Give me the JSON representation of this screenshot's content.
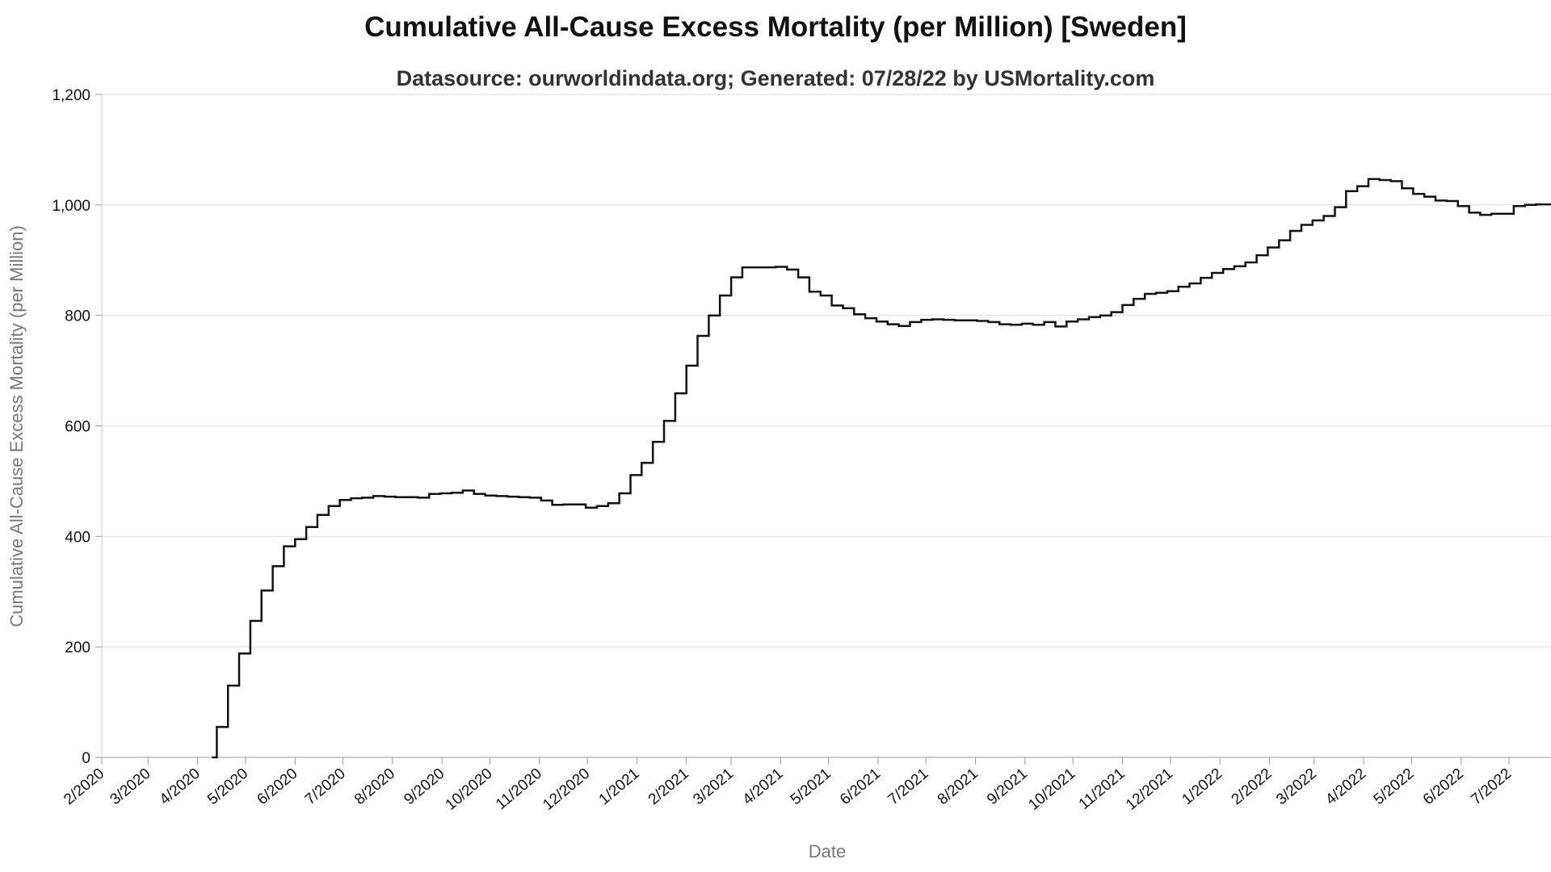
{
  "chart_data": {
    "type": "line",
    "title": "Cumulative All-Cause Excess Mortality (per Million) [Sweden]",
    "subtitle": "Datasource: ourworldindata.org; Generated: 07/28/22 by USMortality.com",
    "xlabel": "Date",
    "ylabel": "Cumulative All-Cause Excess Mortality (per Million)",
    "ylim": [
      0,
      1200
    ],
    "y_ticks": [
      {
        "value": 0,
        "label": "0"
      },
      {
        "value": 200,
        "label": "200"
      },
      {
        "value": 400,
        "label": "400"
      },
      {
        "value": 600,
        "label": "600"
      },
      {
        "value": 800,
        "label": "800"
      },
      {
        "value": 1000,
        "label": "1,000"
      },
      {
        "value": 1200,
        "label": "1,200"
      }
    ],
    "x_ticks": [
      "2/2020",
      "3/2020",
      "4/2020",
      "5/2020",
      "6/2020",
      "7/2020",
      "8/2020",
      "9/2020",
      "10/2020",
      "11/2020",
      "12/2020",
      "1/2021",
      "2/2021",
      "3/2021",
      "4/2021",
      "5/2021",
      "6/2021",
      "7/2021",
      "8/2021",
      "9/2021",
      "10/2021",
      "11/2021",
      "12/2021",
      "1/2022",
      "2/2022",
      "3/2022",
      "4/2022",
      "5/2022",
      "6/2022",
      "7/2022"
    ],
    "grid": "horizontal",
    "line_color": "#111111",
    "step": true,
    "series": [
      {
        "points": [
          [
            "2020-04-10",
            0
          ],
          [
            "2020-04-13",
            55
          ],
          [
            "2020-04-20",
            130
          ],
          [
            "2020-04-27",
            188
          ],
          [
            "2020-05-04",
            247
          ],
          [
            "2020-05-11",
            302
          ],
          [
            "2020-05-18",
            346
          ],
          [
            "2020-05-25",
            382
          ],
          [
            "2020-06-01",
            395
          ],
          [
            "2020-06-08",
            417
          ],
          [
            "2020-06-15",
            439
          ],
          [
            "2020-06-22",
            455
          ],
          [
            "2020-06-29",
            466
          ],
          [
            "2020-07-06",
            469
          ],
          [
            "2020-07-13",
            470
          ],
          [
            "2020-07-20",
            473
          ],
          [
            "2020-07-27",
            472
          ],
          [
            "2020-08-03",
            471
          ],
          [
            "2020-08-10",
            471
          ],
          [
            "2020-08-17",
            470
          ],
          [
            "2020-08-24",
            477
          ],
          [
            "2020-08-31",
            478
          ],
          [
            "2020-09-07",
            479
          ],
          [
            "2020-09-14",
            483
          ],
          [
            "2020-09-21",
            477
          ],
          [
            "2020-09-28",
            474
          ],
          [
            "2020-10-05",
            473
          ],
          [
            "2020-10-12",
            472
          ],
          [
            "2020-10-19",
            471
          ],
          [
            "2020-10-26",
            470
          ],
          [
            "2020-11-02",
            465
          ],
          [
            "2020-11-09",
            457
          ],
          [
            "2020-11-16",
            458
          ],
          [
            "2020-11-23",
            458
          ],
          [
            "2020-11-30",
            452
          ],
          [
            "2020-12-07",
            455
          ],
          [
            "2020-12-14",
            460
          ],
          [
            "2020-12-21",
            478
          ],
          [
            "2020-12-28",
            511
          ],
          [
            "2021-01-04",
            533
          ],
          [
            "2021-01-11",
            571
          ],
          [
            "2021-01-18",
            609
          ],
          [
            "2021-01-25",
            659
          ],
          [
            "2021-02-01",
            709
          ],
          [
            "2021-02-08",
            763
          ],
          [
            "2021-02-15",
            800
          ],
          [
            "2021-02-22",
            836
          ],
          [
            "2021-03-01",
            869
          ],
          [
            "2021-03-08",
            887
          ],
          [
            "2021-03-15",
            887
          ],
          [
            "2021-03-22",
            887
          ],
          [
            "2021-03-29",
            888
          ],
          [
            "2021-04-05",
            883
          ],
          [
            "2021-04-12",
            869
          ],
          [
            "2021-04-19",
            843
          ],
          [
            "2021-04-26",
            836
          ],
          [
            "2021-05-03",
            818
          ],
          [
            "2021-05-10",
            813
          ],
          [
            "2021-05-17",
            802
          ],
          [
            "2021-05-24",
            795
          ],
          [
            "2021-05-31",
            789
          ],
          [
            "2021-06-07",
            784
          ],
          [
            "2021-06-14",
            781
          ],
          [
            "2021-06-21",
            788
          ],
          [
            "2021-06-28",
            792
          ],
          [
            "2021-07-05",
            793
          ],
          [
            "2021-07-12",
            792
          ],
          [
            "2021-07-19",
            791
          ],
          [
            "2021-07-26",
            791
          ],
          [
            "2021-08-02",
            790
          ],
          [
            "2021-08-09",
            788
          ],
          [
            "2021-08-16",
            784
          ],
          [
            "2021-08-23",
            783
          ],
          [
            "2021-08-30",
            785
          ],
          [
            "2021-09-06",
            783
          ],
          [
            "2021-09-13",
            788
          ],
          [
            "2021-09-20",
            780
          ],
          [
            "2021-09-27",
            789
          ],
          [
            "2021-10-04",
            793
          ],
          [
            "2021-10-11",
            797
          ],
          [
            "2021-10-18",
            800
          ],
          [
            "2021-10-25",
            806
          ],
          [
            "2021-11-01",
            819
          ],
          [
            "2021-11-08",
            830
          ],
          [
            "2021-11-15",
            839
          ],
          [
            "2021-11-22",
            841
          ],
          [
            "2021-11-29",
            844
          ],
          [
            "2021-12-06",
            852
          ],
          [
            "2021-12-13",
            858
          ],
          [
            "2021-12-20",
            868
          ],
          [
            "2021-12-27",
            877
          ],
          [
            "2022-01-03",
            884
          ],
          [
            "2022-01-10",
            889
          ],
          [
            "2022-01-17",
            896
          ],
          [
            "2022-01-24",
            909
          ],
          [
            "2022-01-31",
            923
          ],
          [
            "2022-02-07",
            936
          ],
          [
            "2022-02-14",
            953
          ],
          [
            "2022-02-21",
            964
          ],
          [
            "2022-02-28",
            972
          ],
          [
            "2022-03-07",
            980
          ],
          [
            "2022-03-14",
            996
          ],
          [
            "2022-03-21",
            1025
          ],
          [
            "2022-03-28",
            1034
          ],
          [
            "2022-04-04",
            1047
          ],
          [
            "2022-04-11",
            1045
          ],
          [
            "2022-04-18",
            1043
          ],
          [
            "2022-04-25",
            1030
          ],
          [
            "2022-05-02",
            1020
          ],
          [
            "2022-05-09",
            1015
          ],
          [
            "2022-05-16",
            1008
          ],
          [
            "2022-05-23",
            1007
          ],
          [
            "2022-05-30",
            998
          ],
          [
            "2022-06-06",
            986
          ],
          [
            "2022-06-13",
            982
          ],
          [
            "2022-06-20",
            984
          ],
          [
            "2022-06-27",
            984
          ],
          [
            "2022-07-04",
            998
          ],
          [
            "2022-07-11",
            1000
          ],
          [
            "2022-07-18",
            1001
          ],
          [
            "2022-07-25",
            1001
          ],
          [
            "2022-08-01",
            1001
          ],
          [
            "2022-08-08",
            1001
          ],
          [
            "2022-08-15",
            1001
          ]
        ]
      }
    ]
  }
}
